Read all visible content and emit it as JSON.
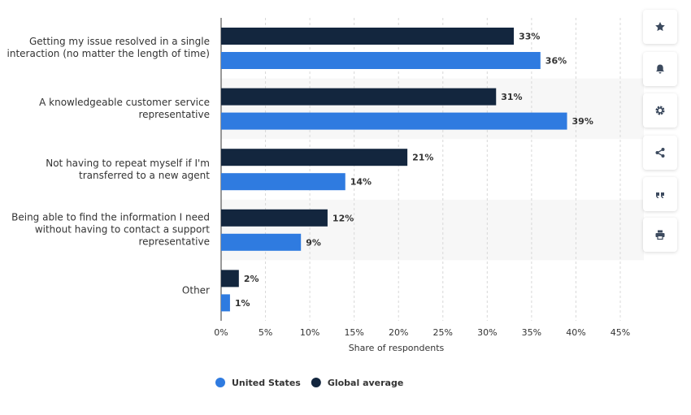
{
  "chart_data": {
    "type": "bar",
    "orientation": "horizontal",
    "categories": [
      "Getting my issue resolved in a single interaction (no matter the length of time)",
      "A knowledgeable customer service representative",
      "Not having to repeat myself if I'm transferred to a new agent",
      "Being able to find the information I need without having to contact a support representative",
      "Other"
    ],
    "series": [
      {
        "name": "United States",
        "color": "#2f7be0",
        "values": [
          36,
          39,
          14,
          9,
          1
        ],
        "value_labels": [
          "36%",
          "39%",
          "14%",
          "9%",
          "1%"
        ]
      },
      {
        "name": "Global average",
        "color": "#13263e",
        "values": [
          33,
          31,
          21,
          12,
          2
        ],
        "value_labels": [
          "33%",
          "31%",
          "21%",
          "12%",
          "2%"
        ]
      }
    ],
    "xlabel": "Share of respondents",
    "xlim": [
      0,
      45
    ],
    "xticks": [
      {
        "value": 0,
        "label": "0%"
      },
      {
        "value": 5,
        "label": "5%"
      },
      {
        "value": 10,
        "label": "10%"
      },
      {
        "value": 15,
        "label": "15%"
      },
      {
        "value": 20,
        "label": "20%"
      },
      {
        "value": 25,
        "label": "25%"
      },
      {
        "value": 30,
        "label": "30%"
      },
      {
        "value": 35,
        "label": "35%"
      },
      {
        "value": 40,
        "label": "40%"
      },
      {
        "value": 45,
        "label": "45%"
      }
    ],
    "grid": true,
    "legend": "bottom"
  }
}
